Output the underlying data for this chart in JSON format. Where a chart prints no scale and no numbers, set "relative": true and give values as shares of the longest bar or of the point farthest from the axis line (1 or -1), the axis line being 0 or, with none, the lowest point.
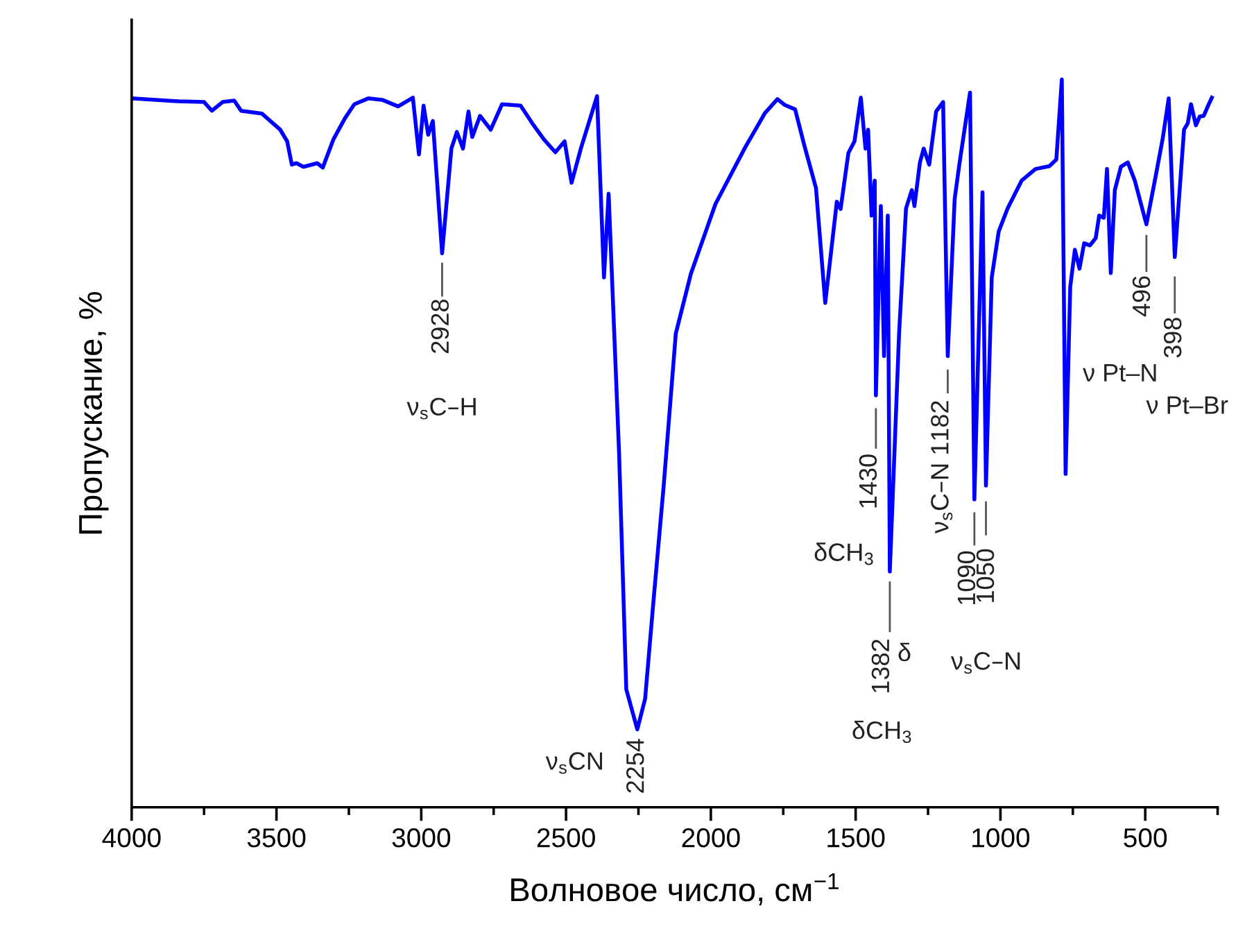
{
  "chart_data": {
    "type": "line",
    "relative": true,
    "xlabel": "Волновое число, см$^{−1}$",
    "ylabel": "Пропускание, %",
    "xlim": [
      4000,
      250
    ],
    "xticks": [
      4000,
      {
        "value": 3750,
        "label": null
      },
      3500,
      {
        "value": 3250,
        "label": null
      },
      3000,
      {
        "value": 2750,
        "label": null
      },
      2500,
      {
        "value": 2250,
        "label": null
      },
      2000,
      {
        "value": 1750,
        "label": null
      },
      1500,
      {
        "value": 1250,
        "label": null
      },
      1000,
      {
        "value": 750,
        "label": null
      },
      500,
      {
        "value": 250,
        "label": null
      }
    ],
    "x": [
      4000,
      3838,
      3750,
      3723,
      3686,
      3646,
      3622,
      3550,
      3487,
      3463,
      3447,
      3431,
      3407,
      3359,
      3340,
      3303,
      3263,
      3231,
      3183,
      3135,
      3080,
      3029,
      3008,
      2992,
      2976,
      2960,
      2928,
      2896,
      2877,
      2856,
      2837,
      2824,
      2797,
      2760,
      2721,
      2657,
      2617,
      2577,
      2537,
      2505,
      2481,
      2449,
      2393,
      2369,
      2353,
      2317,
      2292,
      2254,
      2227,
      2198,
      2163,
      2121,
      2069,
      1984,
      1881,
      1813,
      1770,
      1745,
      1709,
      1677,
      1637,
      1605,
      1565,
      1552,
      1525,
      1504,
      1482,
      1466,
      1457,
      1445,
      1434,
      1430,
      1413,
      1402,
      1389,
      1382,
      1350,
      1326,
      1306,
      1297,
      1278,
      1265,
      1246,
      1222,
      1198,
      1182,
      1158,
      1142,
      1105,
      1090,
      1062,
      1050,
      1030,
      1006,
      975,
      927,
      879,
      831,
      807,
      788,
      775,
      759,
      743,
      727,
      711,
      691,
      671,
      659,
      643,
      632,
      619,
      605,
      584,
      560,
      536,
      496,
      464,
      440,
      419,
      398,
      366,
      353,
      342,
      325,
      312,
      298,
      284,
      270
    ],
    "series": [
      {
        "color": "#0000ff",
        "values": [
          0.974,
          0.97,
          0.969,
          0.957,
          0.969,
          0.971,
          0.957,
          0.953,
          0.931,
          0.915,
          0.883,
          0.885,
          0.88,
          0.885,
          0.879,
          0.918,
          0.947,
          0.966,
          0.974,
          0.972,
          0.963,
          0.975,
          0.897,
          0.964,
          0.924,
          0.943,
          0.761,
          0.905,
          0.928,
          0.905,
          0.956,
          0.921,
          0.95,
          0.931,
          0.966,
          0.964,
          0.94,
          0.918,
          0.9,
          0.915,
          0.858,
          0.905,
          0.977,
          0.728,
          0.843,
          0.488,
          0.162,
          0.107,
          0.149,
          0.284,
          0.441,
          0.651,
          0.733,
          0.829,
          0.907,
          0.954,
          0.973,
          0.965,
          0.959,
          0.909,
          0.851,
          0.693,
          0.832,
          0.822,
          0.899,
          0.915,
          0.975,
          0.905,
          0.931,
          0.813,
          0.861,
          0.566,
          0.826,
          0.62,
          0.813,
          0.324,
          0.651,
          0.823,
          0.848,
          0.826,
          0.886,
          0.905,
          0.883,
          0.956,
          0.969,
          0.62,
          0.836,
          0.883,
          0.982,
          0.423,
          0.845,
          0.442,
          0.728,
          0.791,
          0.823,
          0.861,
          0.877,
          0.881,
          0.89,
          1.0,
          0.458,
          0.715,
          0.766,
          0.74,
          0.775,
          0.772,
          0.782,
          0.813,
          0.81,
          0.877,
          0.734,
          0.848,
          0.88,
          0.886,
          0.861,
          0.801,
          0.867,
          0.918,
          0.974,
          0.756,
          0.931,
          0.94,
          0.966,
          0.937,
          0.949,
          0.95,
          0.963,
          0.975
        ]
      }
    ],
    "annotations": [
      {
        "text": "2928",
        "x": 2928,
        "y": 0.761
      },
      {
        "text": "2254",
        "x": 2254,
        "y": 0.107
      },
      {
        "text": "1430",
        "x": 1430,
        "y": 0.566
      },
      {
        "text": "1382",
        "x": 1382,
        "y": 0.324
      },
      {
        "text": "ν$_{s}$C–N 1182",
        "x": 1182,
        "y": 0.62
      },
      {
        "text": "1090",
        "x": 1090,
        "y": 0.423
      },
      {
        "text": "1050",
        "x": 1050,
        "y": 0.442
      },
      {
        "text": "496",
        "x": 496,
        "y": 0.801
      },
      {
        "text": "398",
        "x": 398,
        "y": 0.756
      },
      "ν$_{s}$C–H",
      "ν$_{s}$CN",
      "δCH$_{3}$",
      "δ",
      "δCH$_{3}$",
      "ν$_{s}$C–N",
      "ν Pt–N",
      "ν Pt–Br"
    ]
  }
}
